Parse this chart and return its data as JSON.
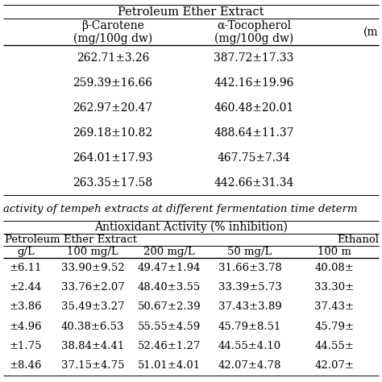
{
  "bg_color": "#ffffff",
  "text_color": "#000000",
  "line_color": "#000000",
  "t1_header": "Petroleum Ether Extract",
  "t1_col1_line1": "β-Carotene",
  "t1_col1_line2": "(mg/100g dw)",
  "t1_col2_line1": "α-Tocopherol",
  "t1_col2_line2": "(mg/100g dw)",
  "t1_col3_partial": "(m",
  "t1_rows": [
    [
      "262.71±3.26",
      "387.72±17.33"
    ],
    [
      "259.39±16.66",
      "442.16±19.96"
    ],
    [
      "262.97±20.47",
      "460.48±20.01"
    ],
    [
      "269.18±10.82",
      "488.64±11.37"
    ],
    [
      "264.01±17.93",
      "467.75±7.34"
    ],
    [
      "263.35±17.58",
      "442.66±31.34"
    ]
  ],
  "caption": "activity of tempeh extracts at different fermentation time determ",
  "t2_header1": "Antioxidant Activity (% inhibition)",
  "t2_header2a": "Petroleum Ether Extract",
  "t2_header2b": "Ethanol",
  "t2_cols": [
    "g/L",
    "100 mg/L",
    "200 mg/L",
    "50 mg/L",
    "100 m"
  ],
  "t2_rows": [
    [
      "±6.11",
      "33.90±9.52",
      "49.47±1.94",
      "31.66±3.78",
      "40.08±"
    ],
    [
      "±2.44",
      "33.76±2.07",
      "48.40±3.55",
      "33.39±5.73",
      "33.30±"
    ],
    [
      "±3.86",
      "35.49±3.27",
      "50.67±2.39",
      "37.43±3.89",
      "37.43±"
    ],
    [
      "±4.96",
      "40.38±6.53",
      "55.55±4.59",
      "45.79±8.51",
      "45.79±"
    ],
    [
      "±1.75",
      "38.84±4.41",
      "52.46±1.27",
      "44.55±4.10",
      "44.55±"
    ],
    [
      "±8.46",
      "37.15±4.75",
      "51.01±4.01",
      "42.07±4.78",
      "42.07±"
    ]
  ]
}
